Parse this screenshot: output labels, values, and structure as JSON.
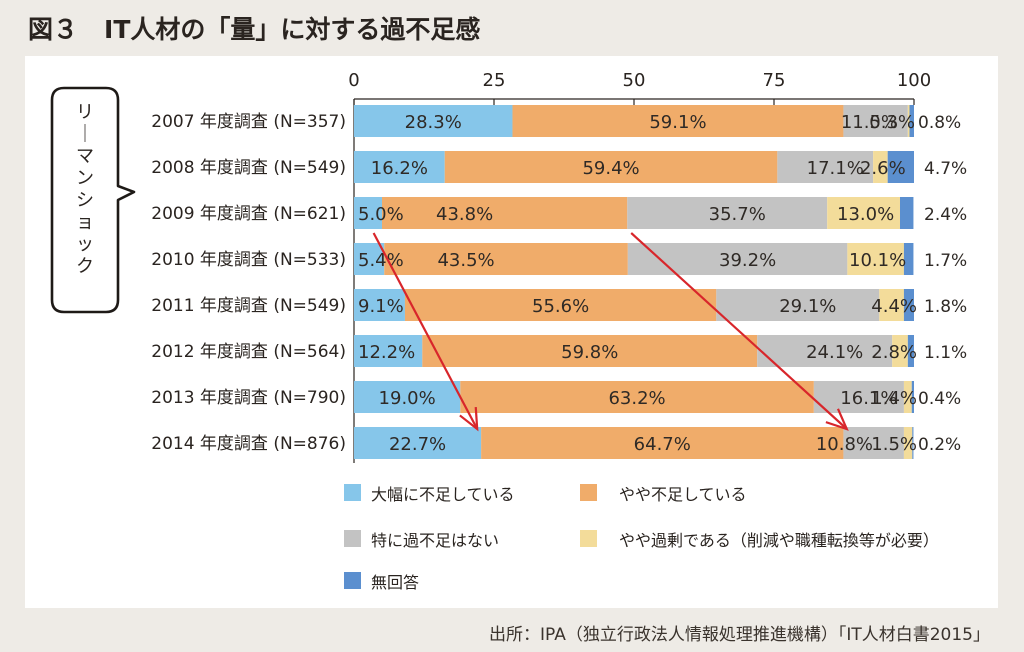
{
  "header": {
    "figure_label": "図３",
    "title": "IT人材の「量」に対する過不足感"
  },
  "source": "出所：IPA（独立行政法人情報処理推進機構）「IT人材白書2015」",
  "callout": {
    "text": "リーマンショック"
  },
  "colors": {
    "severe_shortage": "#86c6ea",
    "some_shortage": "#f0ac6a",
    "no_issue": "#c3c3c3",
    "some_surplus": "#f3dc9a",
    "no_answer": "#5b8fcf",
    "arrow": "#d8262b"
  },
  "chart_data": {
    "type": "bar",
    "orientation": "horizontal",
    "stacked": true,
    "title": "IT人材の「量」に対する過不足感",
    "xlabel": "",
    "ylabel": "",
    "xlim": [
      0,
      100
    ],
    "x_ticks": [
      "0",
      "25",
      "50",
      "75",
      "100"
    ],
    "grid": false,
    "legend_position": "bottom",
    "categories": [
      "2007 年度調査 (N=357)",
      "2008 年度調査 (N=549)",
      "2009 年度調査 (N=621)",
      "2010 年度調査 (N=533)",
      "2011 年度調査 (N=549)",
      "2012 年度調査 (N=564)",
      "2013 年度調査 (N=790)",
      "2014 年度調査 (N=876)"
    ],
    "series": [
      {
        "name": "大幅に不足している",
        "color_key": "severe_shortage",
        "values": [
          28.3,
          16.2,
          5.0,
          5.4,
          9.1,
          12.2,
          19.0,
          22.7
        ]
      },
      {
        "name": "やや不足している",
        "color_key": "some_shortage",
        "values": [
          59.1,
          59.4,
          43.8,
          43.5,
          55.6,
          59.8,
          63.2,
          64.7
        ]
      },
      {
        "name": "特に過不足はない",
        "color_key": "no_issue",
        "values": [
          11.5,
          17.1,
          35.7,
          39.2,
          29.1,
          24.1,
          16.1,
          10.8
        ]
      },
      {
        "name": "やや過剰である（削減や職種転換等が必要）",
        "color_key": "some_surplus",
        "values": [
          0.3,
          2.6,
          13.0,
          10.1,
          4.4,
          2.8,
          1.4,
          1.5
        ]
      },
      {
        "name": "無回答",
        "color_key": "no_answer",
        "values": [
          0.8,
          4.7,
          2.4,
          1.7,
          1.8,
          1.1,
          0.4,
          0.2
        ]
      }
    ],
    "data_labels": [
      [
        "28.3%",
        "59.1%",
        "11.5%",
        "0.3%",
        "0.8%"
      ],
      [
        "16.2%",
        "59.4%",
        "17.1%",
        "2.6%",
        "4.7%"
      ],
      [
        "5.0%",
        "43.8%",
        "35.7%",
        "13.0%",
        "2.4%"
      ],
      [
        "5.4%",
        "43.5%",
        "39.2%",
        "10.1%",
        "1.7%"
      ],
      [
        "9.1%",
        "55.6%",
        "29.1%",
        "4.4%",
        "1.8%"
      ],
      [
        "12.2%",
        "59.8%",
        "24.1%",
        "2.8%",
        "1.1%"
      ],
      [
        "19.0%",
        "63.2%",
        "16.1%",
        "1.4%",
        "0.4%"
      ],
      [
        "22.7%",
        "64.7%",
        "10.8%",
        "1.5%",
        "0.2%"
      ]
    ],
    "annotations": [
      {
        "type": "arrow",
        "description": "大幅に不足している trend",
        "from": {
          "category_index": 2,
          "x": 3.5
        },
        "to": {
          "category_index": 7,
          "x": 22.0
        }
      },
      {
        "type": "arrow",
        "description": "不足 boundary trend",
        "from": {
          "category_index": 2,
          "x": 49.5
        },
        "to": {
          "category_index": 7,
          "x": 88.0
        }
      },
      {
        "type": "callout",
        "text": "リーマンショック",
        "points_to_category_index": 2
      }
    ]
  }
}
